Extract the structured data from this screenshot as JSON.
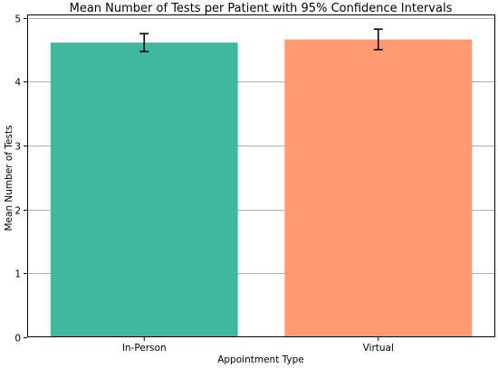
{
  "chart_data": {
    "type": "bar",
    "title": "Mean Number of Tests per Patient with 95% Confidence Intervals",
    "xlabel": "Appointment Type",
    "ylabel": "Mean Number of Tests",
    "categories": [
      "In-Person",
      "Virtual"
    ],
    "values": [
      4.61,
      4.66
    ],
    "ci_lower": [
      4.47,
      4.5
    ],
    "ci_upper": [
      4.75,
      4.82
    ],
    "colors": [
      "#3fb8a0",
      "#ff9a73"
    ],
    "error_bar_color": "#000000",
    "ylim": [
      0,
      5.05
    ],
    "yticks": [
      0,
      1,
      2,
      3,
      4,
      5
    ],
    "grid": "horizontal",
    "grid_color": "#b0b0b0"
  }
}
